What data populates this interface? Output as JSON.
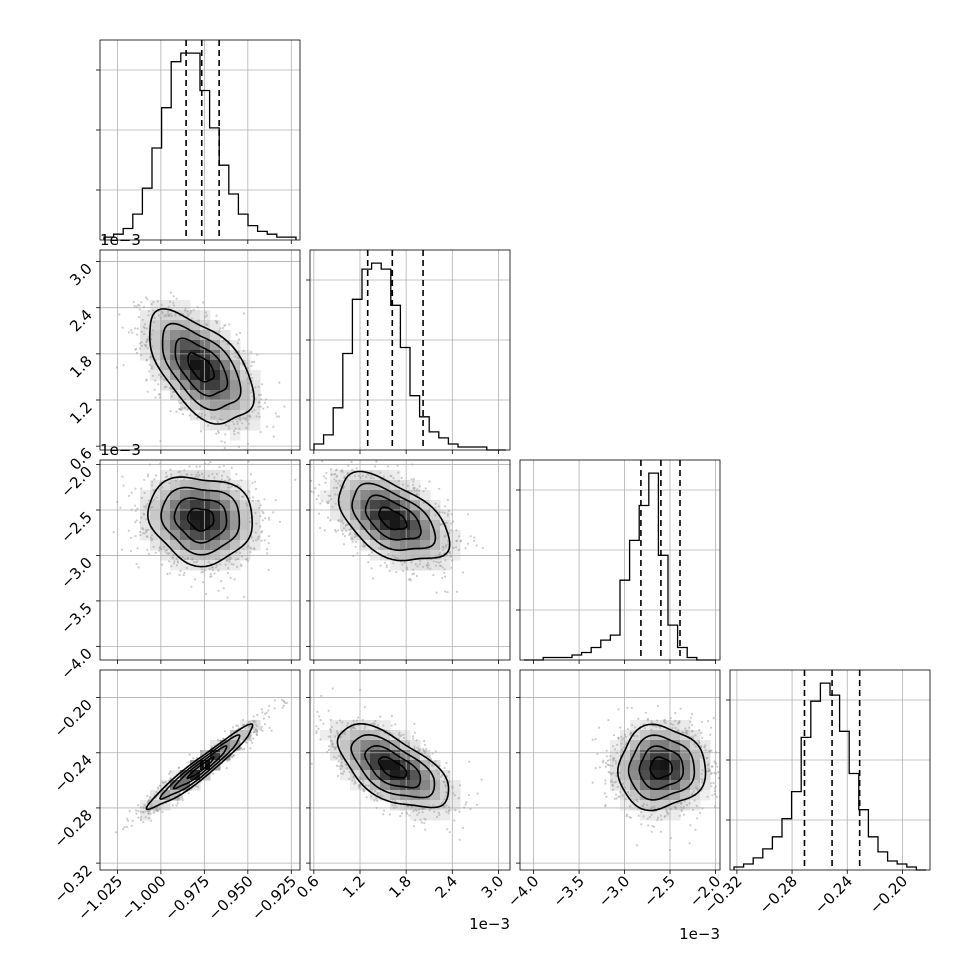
{
  "chart_data": {
    "type": "corner",
    "grid": true,
    "parameters": [
      {
        "range": [
          -1.035,
          -0.92
        ],
        "ticks": [
          -1.025,
          -1.0,
          -0.975,
          -0.95,
          -0.925
        ],
        "tick_labels": [
          "−1.025",
          "−1.000",
          "−0.975",
          "−0.950",
          "−0.925"
        ],
        "quantiles": [
          -0.9855,
          -0.9765,
          -0.9665
        ],
        "offset_text": ""
      },
      {
        "range": [
          0.55,
          3.15
        ],
        "ticks": [
          0.6,
          1.2,
          1.8,
          2.4,
          3.0
        ],
        "tick_labels": [
          "0.6",
          "1.2",
          "1.8",
          "2.4",
          "3.0"
        ],
        "quantiles": [
          1.3,
          1.62,
          2.02
        ],
        "offset_text": "1e−3"
      },
      {
        "range": [
          -4.15,
          -1.95
        ],
        "ticks": [
          -4.0,
          -3.5,
          -3.0,
          -2.5,
          -2.0
        ],
        "tick_labels": [
          "−4.0",
          "−3.5",
          "−3.0",
          "−2.5",
          "−2.0"
        ],
        "quantiles": [
          -2.82,
          -2.6,
          -2.39
        ],
        "offset_text": "1e−3"
      },
      {
        "range": [
          -0.325,
          -0.18
        ],
        "ticks": [
          -0.32,
          -0.28,
          -0.24,
          -0.2
        ],
        "tick_labels": [
          "−0.32",
          "−0.28",
          "−0.24",
          "−0.20"
        ],
        "quantiles": [
          -0.271,
          -0.251,
          -0.231
        ],
        "offset_text": ""
      }
    ],
    "histograms": [
      [
        1,
        2,
        4,
        9,
        18,
        32,
        46,
        62,
        65,
        65,
        52,
        39,
        26,
        16,
        9,
        5,
        3,
        2,
        1,
        1
      ],
      [
        2,
        5,
        14,
        32,
        50,
        60,
        62,
        60,
        48,
        34,
        18,
        11,
        6,
        4,
        2,
        1,
        1,
        1,
        0,
        0
      ],
      [
        0,
        0,
        1,
        1,
        1,
        2,
        3,
        5,
        8,
        10,
        32,
        48,
        62,
        75,
        42,
        14,
        5,
        1,
        0,
        0
      ],
      [
        1,
        2,
        4,
        7,
        11,
        17,
        26,
        44,
        56,
        62,
        58,
        46,
        32,
        20,
        11,
        6,
        3,
        2,
        1,
        0
      ]
    ],
    "pairs": [
      {
        "x": 0,
        "y": 1,
        "mean": [
          -0.977,
          1.62
        ],
        "sd": [
          0.015,
          0.36
        ],
        "rho": -0.55
      },
      {
        "x": 0,
        "y": 2,
        "mean": [
          -0.977,
          -2.6
        ],
        "sd": [
          0.015,
          0.24
        ],
        "rho": -0.1
      },
      {
        "x": 1,
        "y": 2,
        "mean": [
          1.62,
          -2.6
        ],
        "sd": [
          0.36,
          0.24
        ],
        "rho": -0.5
      },
      {
        "x": 0,
        "y": 3,
        "mean": [
          -0.977,
          -0.251
        ],
        "sd": [
          0.015,
          0.015
        ],
        "rho": 0.96
      },
      {
        "x": 1,
        "y": 3,
        "mean": [
          1.62,
          -0.251
        ],
        "sd": [
          0.36,
          0.015
        ],
        "rho": -0.6
      },
      {
        "x": 2,
        "y": 3,
        "mean": [
          -2.6,
          -0.251
        ],
        "sd": [
          0.24,
          0.015
        ],
        "rho": 0.02
      }
    ],
    "contour_levels": [
      0.5,
      1.0,
      1.5,
      2.0
    ]
  }
}
